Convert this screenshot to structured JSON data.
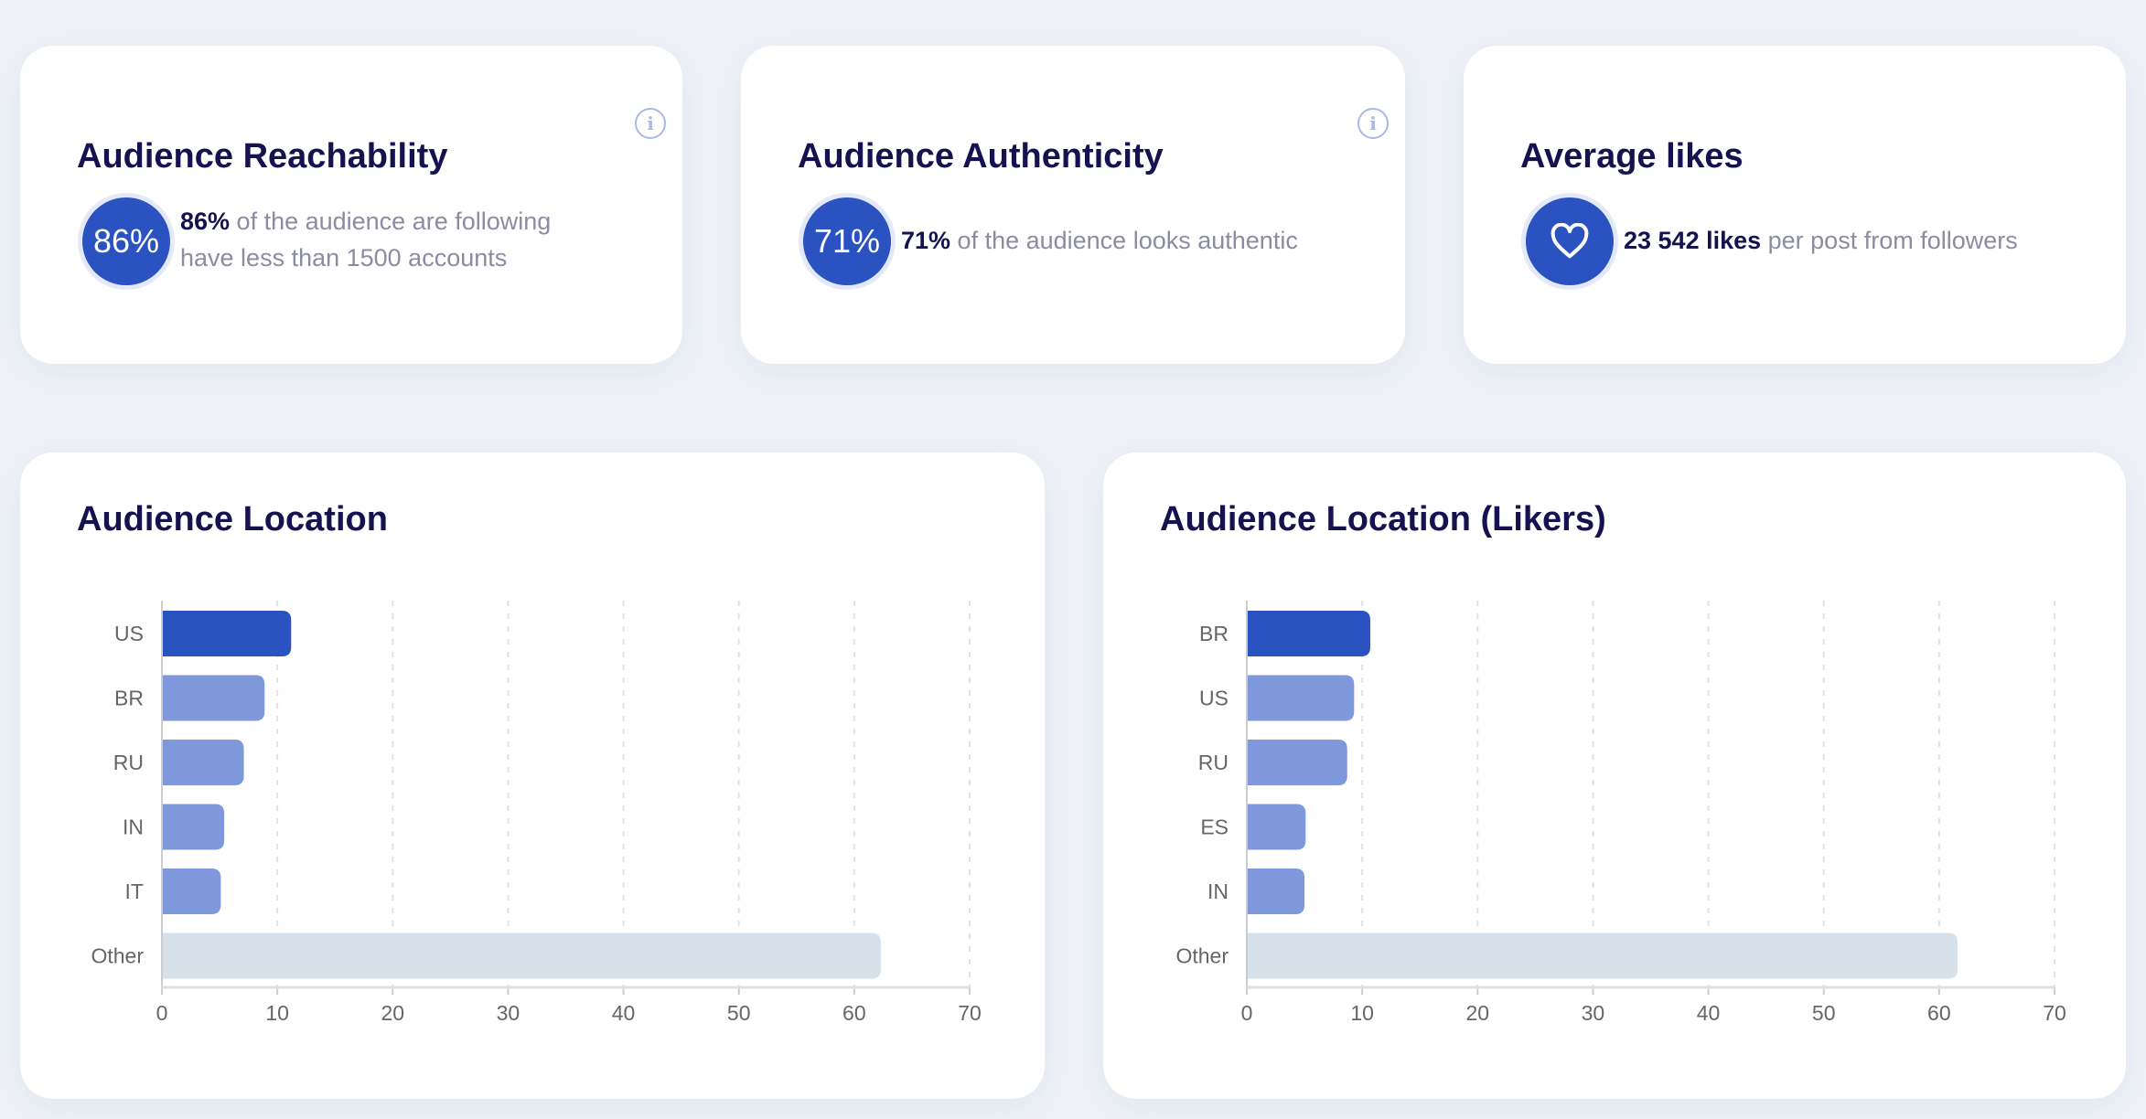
{
  "cards": [
    {
      "title": "Audience Reachability",
      "value": "86%",
      "bold": "86%",
      "text_line1": " of the audience are following",
      "text_line2": "have less than 1500 accounts",
      "icon": "info-icon"
    },
    {
      "title": "Audience Authenticity",
      "value": "71%",
      "bold": "71%",
      "text": " of the audience looks authentic",
      "icon": "info-icon"
    },
    {
      "title": "Average likes",
      "bold": "23 542 likes",
      "text": " per post from followers",
      "icon": "heart-icon"
    }
  ],
  "colors": {
    "primary": "#2a53c1",
    "secondary": "#7f98db",
    "other": "#d6e1ea",
    "title": "#16124f"
  },
  "chart_data": [
    {
      "type": "bar",
      "orientation": "horizontal",
      "title": "Audience Location",
      "categories": [
        "US",
        "BR",
        "RU",
        "IN",
        "IT",
        "Other"
      ],
      "values": [
        11.2,
        8.9,
        7.1,
        5.4,
        5.1,
        62.3
      ],
      "xlim": [
        0,
        70
      ],
      "xticks": [
        0,
        10,
        20,
        30,
        40,
        50,
        60,
        70
      ],
      "grid": true
    },
    {
      "type": "bar",
      "orientation": "horizontal",
      "title": "Audience Location (Likers)",
      "categories": [
        "BR",
        "US",
        "RU",
        "ES",
        "IN",
        "Other"
      ],
      "values": [
        10.7,
        9.3,
        8.7,
        5.1,
        5.0,
        61.6
      ],
      "xlim": [
        0,
        70
      ],
      "xticks": [
        0,
        10,
        20,
        30,
        40,
        50,
        60,
        70
      ],
      "grid": true
    }
  ]
}
